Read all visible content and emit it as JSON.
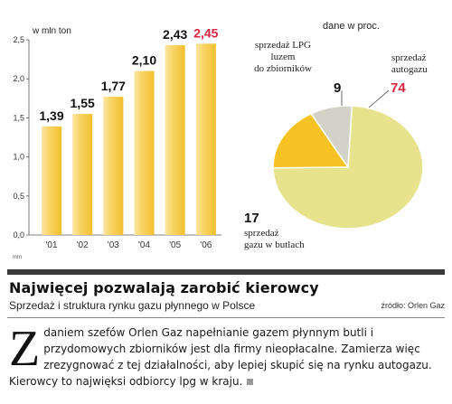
{
  "chart_data": [
    {
      "type": "bar",
      "unit_label": "w mln ton",
      "categories": [
        "'01",
        "'02",
        "'03",
        "'04",
        "'05",
        "'06"
      ],
      "values": [
        1.39,
        1.55,
        1.77,
        2.1,
        2.43,
        2.45
      ],
      "value_labels": [
        "1,39",
        "1,55",
        "1,77",
        "2,10",
        "2,43",
        "2,45"
      ],
      "highlight_index": 5,
      "ylim": [
        0,
        2.5
      ],
      "yticks": [
        "0,0",
        "0,5",
        "1,0",
        "1,5",
        "2,0",
        "2,5"
      ],
      "small_label": "mm",
      "colors": {
        "bar": "#f5c842",
        "bar_light": "#fbe5a3",
        "highlight": "#d6243e",
        "axis": "#555555"
      }
    },
    {
      "type": "pie",
      "unit_label": "dane w proc.",
      "slices": [
        {
          "label": "sprzedaż autogazu",
          "value": 74,
          "value_label": "74",
          "color": "#e6e38c",
          "highlight": true
        },
        {
          "label": "sprzedaż gazu w butlach",
          "value": 17,
          "value_label": "17",
          "color": "#f7c324"
        },
        {
          "label": "sprzedaż LPG luzem do zbiorników",
          "value": 9,
          "value_label": "9",
          "color": "#d2d2c6"
        }
      ]
    }
  ],
  "pie_labels": {
    "lpg_lines": [
      "sprzedaż LPG",
      "luzem",
      "do zbiorników"
    ],
    "autogaz_lines": [
      "sprzedaż",
      "autogazu"
    ],
    "butle_lines": [
      "sprzedaż",
      "gazu w butlach"
    ]
  },
  "article": {
    "headline": "Najwięcej pozwalają zarobić kierowcy",
    "subhead": "Sprzedaż i struktura rynku gazu płynnego w Polsce",
    "source": "źródło: Orlen Gaz",
    "dropcap": "Z",
    "body": "daniem szefów Orlen Gaz napełnianie gazem płynnym butli i przydomowych zbiorników jest dla firmy nieopłacalne. Zamierza więc zrezygnować z tej działalności, aby lepiej skupić się na rynku autogazu. Kierowcy to najwięksi odbiorcy lpg w kraju."
  }
}
